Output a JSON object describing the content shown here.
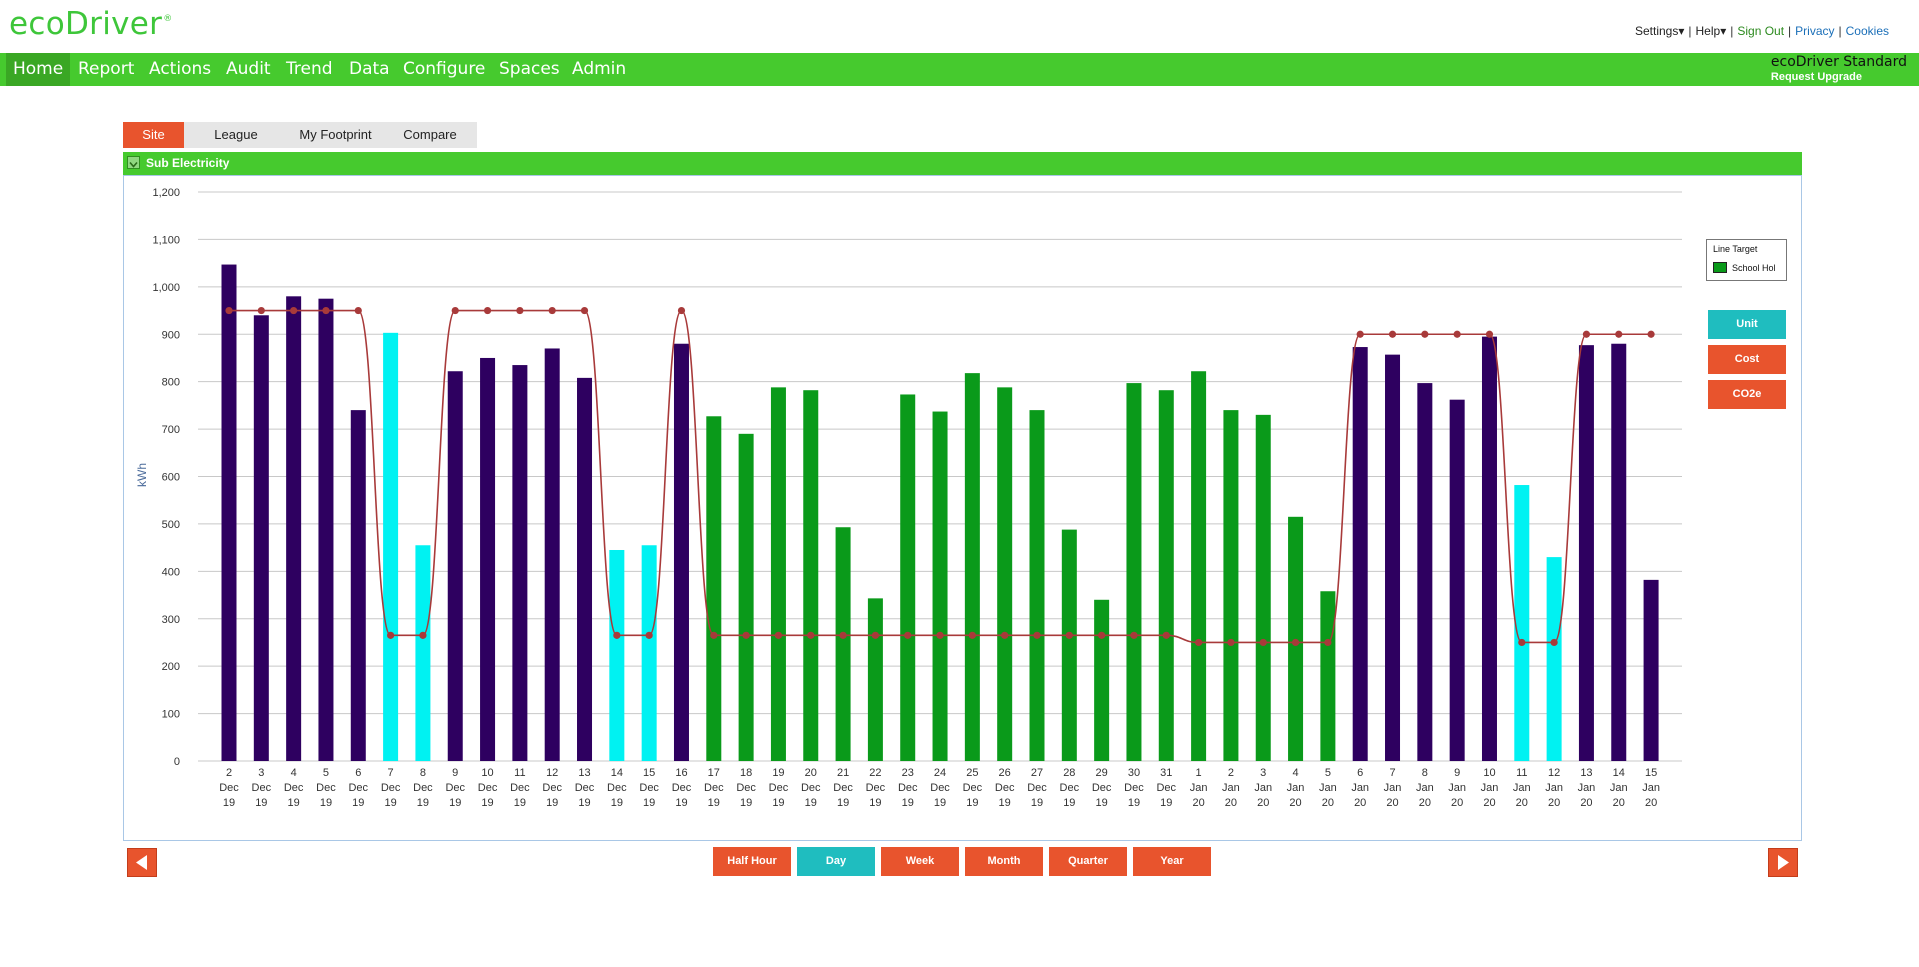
{
  "app": {
    "logo_text": "ecoDriver",
    "logo_mark": "®"
  },
  "top_links": {
    "settings": "Settings",
    "help": "Help",
    "sign_out": "Sign Out",
    "privacy": "Privacy",
    "cookies": "Cookies"
  },
  "nav": {
    "items": [
      {
        "label": "Home",
        "active": true
      },
      {
        "label": "Report"
      },
      {
        "label": "Actions"
      },
      {
        "label": "Audit"
      },
      {
        "label": "Trend"
      },
      {
        "label": "Data"
      },
      {
        "label": "Configure"
      },
      {
        "label": "Spaces"
      },
      {
        "label": "Admin"
      }
    ],
    "plan_name": "ecoDriver Standard",
    "upgrade": "Request Upgrade"
  },
  "tabs": [
    {
      "label": "Site",
      "active": true
    },
    {
      "label": "League"
    },
    {
      "label": "My Footprint"
    },
    {
      "label": "Compare"
    }
  ],
  "panel": {
    "title": "Sub Electricity"
  },
  "legend": {
    "line_label": "Line",
    "target_label": "Target",
    "school_hol_label": "School Hol"
  },
  "side_buttons": {
    "unit": "Unit",
    "cost": "Cost",
    "co2e": "CO2e"
  },
  "periods": [
    {
      "label": "Half Hour"
    },
    {
      "label": "Day",
      "active": true
    },
    {
      "label": "Week"
    },
    {
      "label": "Month"
    },
    {
      "label": "Quarter"
    },
    {
      "label": "Year"
    }
  ],
  "colors": {
    "brand_green": "#46ca2e",
    "accent_orange": "#e8542d",
    "accent_teal": "#1fbdbf",
    "bar_weekday": "#2e0060",
    "bar_weekend": "#00f2f2",
    "bar_school_hol": "#0a9a1a",
    "target_line": "#a83a3a"
  },
  "chart_data": {
    "type": "bar",
    "ylabel": "kWh",
    "ylim": [
      0,
      1200
    ],
    "yticks": [
      "0",
      "100",
      "200",
      "300",
      "400",
      "500",
      "600",
      "700",
      "800",
      "900",
      "1,000",
      "1,100",
      "1,200"
    ],
    "grid": true,
    "legend_position": "right",
    "categories": [
      [
        "2",
        "Dec",
        "19"
      ],
      [
        "3",
        "Dec",
        "19"
      ],
      [
        "4",
        "Dec",
        "19"
      ],
      [
        "5",
        "Dec",
        "19"
      ],
      [
        "6",
        "Dec",
        "19"
      ],
      [
        "7",
        "Dec",
        "19"
      ],
      [
        "8",
        "Dec",
        "19"
      ],
      [
        "9",
        "Dec",
        "19"
      ],
      [
        "10",
        "Dec",
        "19"
      ],
      [
        "11",
        "Dec",
        "19"
      ],
      [
        "12",
        "Dec",
        "19"
      ],
      [
        "13",
        "Dec",
        "19"
      ],
      [
        "14",
        "Dec",
        "19"
      ],
      [
        "15",
        "Dec",
        "19"
      ],
      [
        "16",
        "Dec",
        "19"
      ],
      [
        "17",
        "Dec",
        "19"
      ],
      [
        "18",
        "Dec",
        "19"
      ],
      [
        "19",
        "Dec",
        "19"
      ],
      [
        "20",
        "Dec",
        "19"
      ],
      [
        "21",
        "Dec",
        "19"
      ],
      [
        "22",
        "Dec",
        "19"
      ],
      [
        "23",
        "Dec",
        "19"
      ],
      [
        "24",
        "Dec",
        "19"
      ],
      [
        "25",
        "Dec",
        "19"
      ],
      [
        "26",
        "Dec",
        "19"
      ],
      [
        "27",
        "Dec",
        "19"
      ],
      [
        "28",
        "Dec",
        "19"
      ],
      [
        "29",
        "Dec",
        "19"
      ],
      [
        "30",
        "Dec",
        "19"
      ],
      [
        "31",
        "Dec",
        "19"
      ],
      [
        "1",
        "Jan",
        "20"
      ],
      [
        "2",
        "Jan",
        "20"
      ],
      [
        "3",
        "Jan",
        "20"
      ],
      [
        "4",
        "Jan",
        "20"
      ],
      [
        "5",
        "Jan",
        "20"
      ],
      [
        "6",
        "Jan",
        "20"
      ],
      [
        "7",
        "Jan",
        "20"
      ],
      [
        "8",
        "Jan",
        "20"
      ],
      [
        "9",
        "Jan",
        "20"
      ],
      [
        "10",
        "Jan",
        "20"
      ],
      [
        "11",
        "Jan",
        "20"
      ],
      [
        "12",
        "Jan",
        "20"
      ],
      [
        "13",
        "Jan",
        "20"
      ],
      [
        "14",
        "Jan",
        "20"
      ],
      [
        "15",
        "Jan",
        "20"
      ]
    ],
    "values": [
      1047,
      940,
      980,
      975,
      740,
      903,
      455,
      822,
      850,
      835,
      870,
      808,
      445,
      455,
      880,
      727,
      690,
      788,
      782,
      493,
      343,
      773,
      737,
      818,
      788,
      740,
      488,
      340,
      797,
      782,
      822,
      740,
      730,
      515,
      358,
      873,
      857,
      797,
      762,
      895,
      582,
      430,
      877,
      880,
      382
    ],
    "bar_kind": [
      "weekday",
      "weekday",
      "weekday",
      "weekday",
      "weekday",
      "weekend",
      "weekend",
      "weekday",
      "weekday",
      "weekday",
      "weekday",
      "weekday",
      "weekend",
      "weekend",
      "weekday",
      "school_hol",
      "school_hol",
      "school_hol",
      "school_hol",
      "school_hol",
      "school_hol",
      "school_hol",
      "school_hol",
      "school_hol",
      "school_hol",
      "school_hol",
      "school_hol",
      "school_hol",
      "school_hol",
      "school_hol",
      "school_hol",
      "school_hol",
      "school_hol",
      "school_hol",
      "school_hol",
      "weekday",
      "weekday",
      "weekday",
      "weekday",
      "weekday",
      "weekend",
      "weekend",
      "weekday",
      "weekday",
      "weekday"
    ],
    "target": [
      950,
      950,
      950,
      950,
      950,
      265,
      265,
      950,
      950,
      950,
      950,
      950,
      265,
      265,
      950,
      265,
      265,
      265,
      265,
      265,
      265,
      265,
      265,
      265,
      265,
      265,
      265,
      265,
      265,
      265,
      250,
      250,
      250,
      250,
      250,
      900,
      900,
      900,
      900,
      900,
      250,
      250,
      900,
      900,
      900
    ],
    "series": [
      {
        "name": "Target",
        "kind": "line"
      },
      {
        "name": "School Hol",
        "kind": "bar"
      }
    ]
  }
}
